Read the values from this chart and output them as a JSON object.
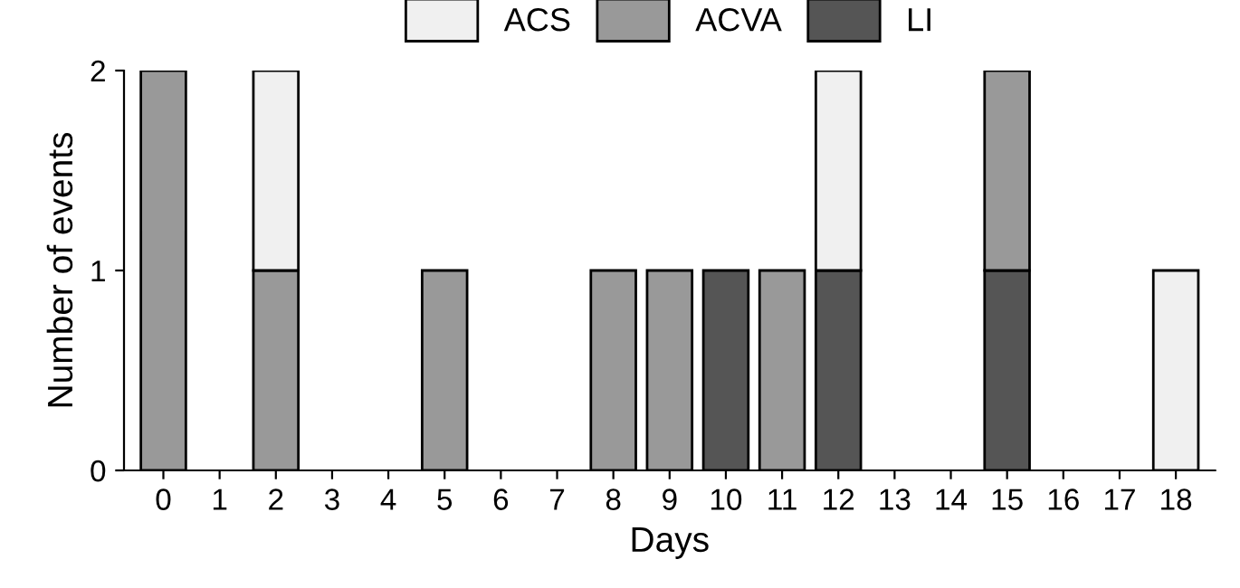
{
  "chart_data": {
    "type": "bar",
    "stacked": true,
    "xlabel": "Days",
    "ylabel": "Number of events",
    "categories": [
      "0",
      "1",
      "2",
      "3",
      "4",
      "5",
      "6",
      "7",
      "8",
      "9",
      "10",
      "11",
      "12",
      "13",
      "14",
      "15",
      "16",
      "17",
      "18"
    ],
    "series": [
      {
        "name": "LI",
        "color": "#555555",
        "values": [
          0,
          0,
          0,
          0,
          0,
          0,
          0,
          0,
          0,
          0,
          1,
          0,
          1,
          0,
          0,
          1,
          0,
          0,
          0
        ]
      },
      {
        "name": "ACVA",
        "color": "#999999",
        "values": [
          2,
          0,
          1,
          0,
          0,
          1,
          0,
          0,
          1,
          1,
          0,
          1,
          0,
          0,
          0,
          1,
          0,
          0,
          0
        ]
      },
      {
        "name": "ACS",
        "color": "#f0f0f0",
        "values": [
          0,
          0,
          1,
          0,
          0,
          0,
          0,
          0,
          0,
          0,
          0,
          0,
          1,
          0,
          0,
          0,
          0,
          0,
          1
        ]
      }
    ],
    "ylim": [
      0,
      2
    ],
    "yticks": [
      0,
      1,
      2
    ],
    "grid": false,
    "legend": "top"
  }
}
